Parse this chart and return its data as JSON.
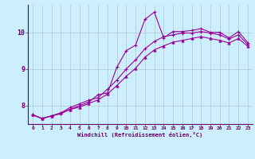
{
  "xlabel": "Windchill (Refroidissement éolien,°C)",
  "background_color": "#cceeff",
  "line_color": "#990099",
  "grid_color": "#aacccc",
  "xlim": [
    -0.5,
    23.5
  ],
  "ylim": [
    7.5,
    10.75
  ],
  "yticks": [
    8,
    9,
    10
  ],
  "xticks": [
    0,
    1,
    2,
    3,
    4,
    5,
    6,
    7,
    8,
    9,
    10,
    11,
    12,
    13,
    14,
    15,
    16,
    17,
    18,
    19,
    20,
    21,
    22,
    23
  ],
  "curve1_x": [
    0,
    1,
    2,
    3,
    4,
    5,
    6,
    7,
    8,
    9,
    10,
    11,
    12,
    13,
    14,
    15,
    16,
    17,
    18,
    19,
    20,
    21,
    22,
    23
  ],
  "curve1_y": [
    7.75,
    7.65,
    7.72,
    7.78,
    7.9,
    8.0,
    8.1,
    8.3,
    8.35,
    9.05,
    9.5,
    9.65,
    10.35,
    10.55,
    9.85,
    10.02,
    10.02,
    10.05,
    10.1,
    10.0,
    10.0,
    9.85,
    10.02,
    9.72
  ],
  "curve2_x": [
    0,
    1,
    2,
    3,
    4,
    5,
    6,
    7,
    8,
    9,
    10,
    11,
    12,
    13,
    14,
    15,
    16,
    17,
    18,
    19,
    20,
    21,
    22,
    23
  ],
  "curve2_y": [
    7.75,
    7.65,
    7.72,
    7.8,
    7.95,
    8.05,
    8.15,
    8.22,
    8.45,
    8.7,
    9.0,
    9.25,
    9.55,
    9.75,
    9.88,
    9.93,
    9.98,
    9.98,
    10.02,
    9.98,
    9.93,
    9.82,
    9.93,
    9.67
  ],
  "curve3_x": [
    0,
    1,
    2,
    3,
    4,
    5,
    6,
    7,
    8,
    9,
    10,
    11,
    12,
    13,
    14,
    15,
    16,
    17,
    18,
    19,
    20,
    21,
    22,
    23
  ],
  "curve3_y": [
    7.75,
    7.65,
    7.72,
    7.8,
    7.9,
    7.96,
    8.06,
    8.16,
    8.32,
    8.55,
    8.8,
    9.02,
    9.32,
    9.52,
    9.63,
    9.73,
    9.78,
    9.83,
    9.88,
    9.83,
    9.78,
    9.71,
    9.83,
    9.62
  ]
}
